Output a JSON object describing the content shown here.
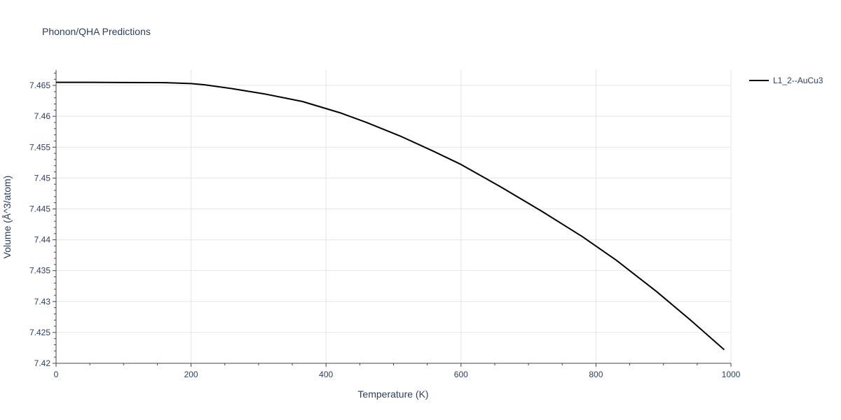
{
  "chart_data": {
    "type": "line",
    "title": "Phonon/QHA Predictions",
    "xlabel": "Temperature (K)",
    "ylabel": "Volume (Å^3/atom)",
    "xlim": [
      0,
      1000
    ],
    "ylim": [
      7.42,
      7.4675
    ],
    "x_ticks": [
      0,
      200,
      400,
      600,
      800,
      1000
    ],
    "x_tick_labels": [
      "0",
      "200",
      "400",
      "600",
      "800",
      "1000"
    ],
    "y_ticks": [
      7.42,
      7.425,
      7.43,
      7.435,
      7.44,
      7.445,
      7.45,
      7.455,
      7.46,
      7.465
    ],
    "y_tick_labels": [
      "7.42",
      "7.425",
      "7.43",
      "7.435",
      "7.44",
      "7.445",
      "7.45",
      "7.455",
      "7.46",
      "7.465"
    ],
    "grid": true,
    "legend_position": "top-right",
    "series": [
      {
        "name": "L1_2--AuCu3",
        "color": "#000000",
        "x": [
          0,
          50,
          100,
          150,
          162,
          200,
          220,
          260,
          310,
          365,
          420,
          460,
          510,
          560,
          600,
          660,
          720,
          780,
          830,
          890,
          940,
          990
        ],
        "y": [
          7.4655,
          7.4655,
          7.46548,
          7.46546,
          7.46545,
          7.4653,
          7.4651,
          7.4645,
          7.4636,
          7.4624,
          7.4606,
          7.459,
          7.4568,
          7.4543,
          7.4522,
          7.4485,
          7.4446,
          7.4405,
          7.4367,
          7.4316,
          7.427,
          7.4222
        ]
      }
    ]
  }
}
